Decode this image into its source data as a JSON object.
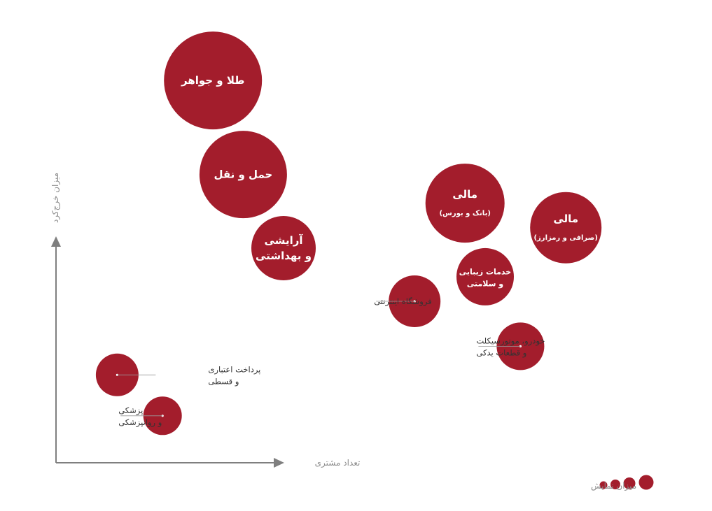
{
  "chart_data": {
    "type": "bubble",
    "xlabel": "تعداد مشتری",
    "ylabel": "میزان خرج‌کرد",
    "size_legend_label": "میزان نمایش",
    "colors": {
      "bubble": "#a31d2c",
      "axis": "#7f7f7f",
      "leader": "#9a9a9a"
    },
    "points": [
      {
        "id": "gold",
        "label_lines": [
          "طلا و جواهر"
        ],
        "label_position": "inside",
        "x": 26,
        "y": 94,
        "size": 140
      },
      {
        "id": "transport",
        "label_lines": [
          "حمل و نقل"
        ],
        "label_position": "inside",
        "x": 32,
        "y": 71,
        "size": 125
      },
      {
        "id": "cosmetic",
        "label_lines": [
          "آرایشی",
          "و بهداشتی"
        ],
        "label_position": "inside",
        "x": 40,
        "y": 53,
        "size": 92
      },
      {
        "id": "fin-bank",
        "label_lines": [
          "مالی",
          "(بانک و بورس)"
        ],
        "label_position": "inside",
        "x": 76,
        "y": 64,
        "size": 113
      },
      {
        "id": "fin-crypto",
        "label_lines": [
          "مالی",
          "(صرافی و رمزارز)"
        ],
        "label_position": "inside",
        "x": 96,
        "y": 58,
        "size": 102
      },
      {
        "id": "beauty",
        "label_lines": [
          "خدمات زیبایی",
          "و سلامتی"
        ],
        "label_position": "inside",
        "x": 80,
        "y": 46,
        "size": 82
      },
      {
        "id": "online",
        "label_lines": [
          "فروشگاه اینترنتی"
        ],
        "label_position": "left",
        "x": 66,
        "y": 40,
        "size": 74
      },
      {
        "id": "auto",
        "label_lines": [
          "خودرو، موتورسیکلت",
          "و قطعات یدکی"
        ],
        "label_position": "left",
        "x": 87,
        "y": 29,
        "size": 68
      },
      {
        "id": "credit",
        "label_lines": [
          "پرداخت اعتباری",
          "و قسطی"
        ],
        "label_position": "right",
        "x": 7,
        "y": 22,
        "size": 61
      },
      {
        "id": "medical",
        "label_lines": [
          "پزشکی",
          "و روانپزشکی"
        ],
        "label_position": "left",
        "x": 16,
        "y": 12,
        "size": 55
      }
    ]
  }
}
